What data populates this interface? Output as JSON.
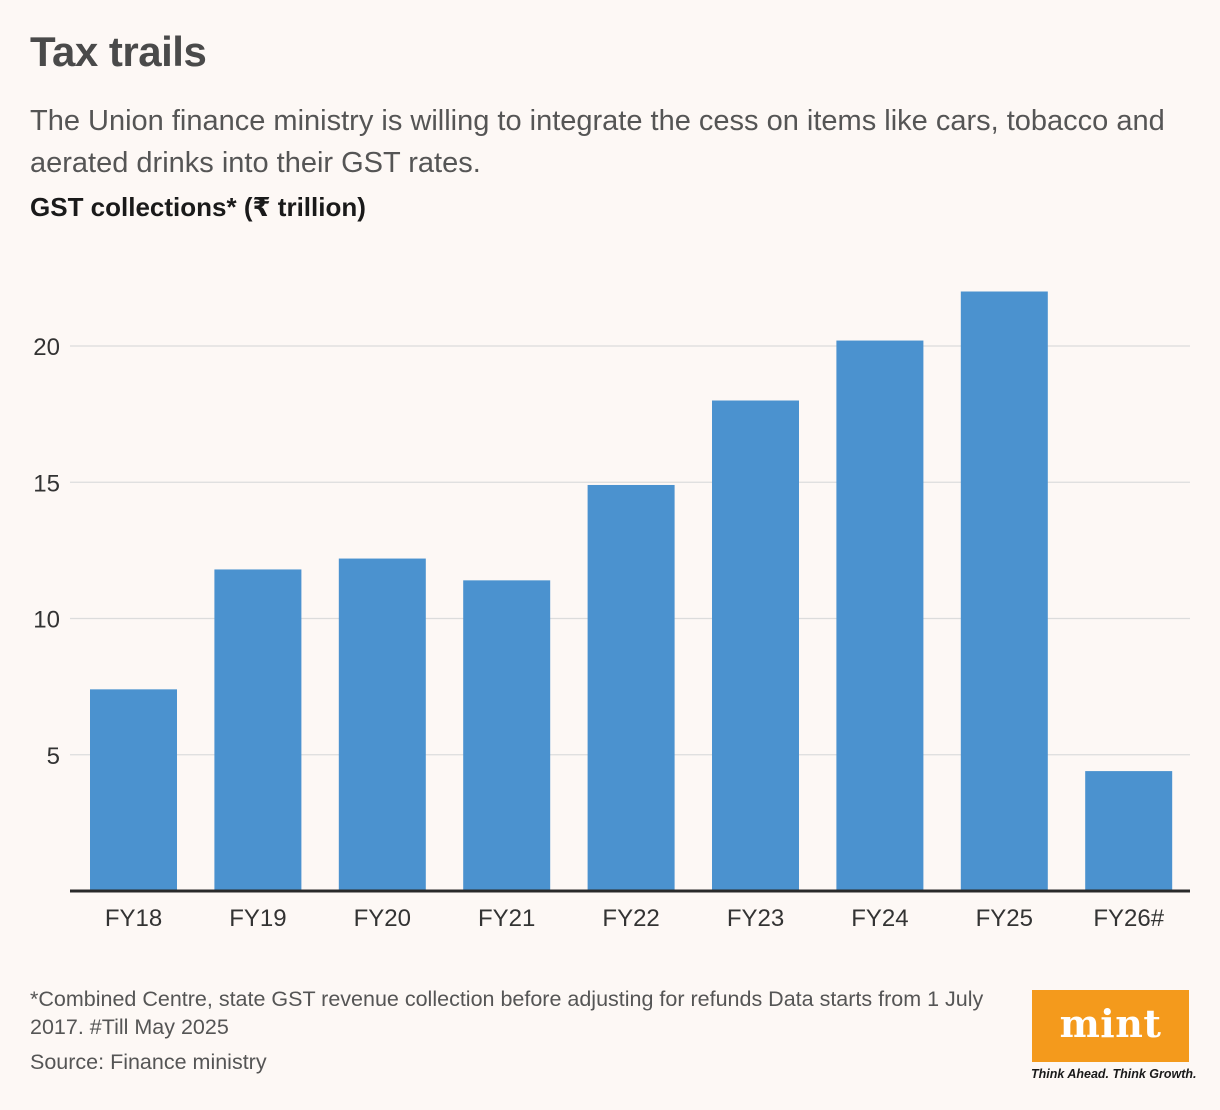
{
  "header": {
    "title": "Tax trails",
    "subtitle": "The Union finance ministry is willing to integrate the cess on items like cars, tobacco and aerated drinks into their GST rates."
  },
  "chart_data": {
    "type": "bar",
    "title": "Tax trails",
    "ylabel": "GST collections* (₹ trillion)",
    "xlabel": "",
    "categories": [
      "FY18",
      "FY19",
      "FY20",
      "FY21",
      "FY22",
      "FY23",
      "FY24",
      "FY25",
      "FY26#"
    ],
    "values": [
      7.4,
      11.8,
      12.2,
      11.4,
      14.9,
      18.0,
      20.2,
      22.0,
      4.4
    ],
    "yticks": [
      5,
      10,
      15,
      20
    ],
    "ylim": [
      0,
      22.8
    ],
    "grid": true,
    "bar_color": "#4b92cf"
  },
  "footer": {
    "note": "*Combined Centre, state GST revenue collection before adjusting for refunds  Data starts from 1 July 2017. #Till May 2025",
    "source": "Source: Finance ministry"
  },
  "logo": {
    "brand": "mint",
    "tagline": "Think Ahead. Think Growth.",
    "color": "#f49a1c"
  }
}
